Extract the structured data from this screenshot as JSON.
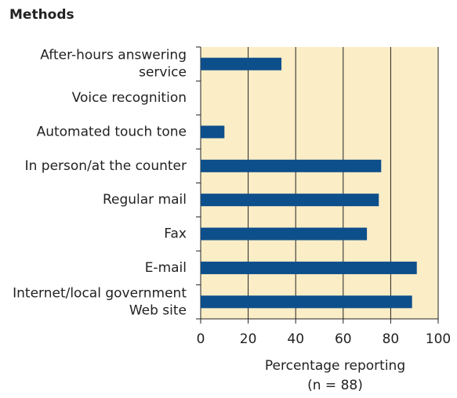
{
  "chart_data": {
    "type": "barh",
    "title": "Methods",
    "categories": [
      [
        "After-hours answering",
        "service"
      ],
      [
        "Voice recognition"
      ],
      [
        "Automated touch tone"
      ],
      [
        "In person/at the counter"
      ],
      [
        "Regular mail"
      ],
      [
        "Fax"
      ],
      [
        "E-mail"
      ],
      [
        "Internet/local government",
        "Web site"
      ]
    ],
    "values": [
      34,
      0,
      10,
      76,
      75,
      70,
      91,
      89
    ],
    "color": "#0d4f8b",
    "background": "#fbedc6",
    "xlim": [
      0,
      100
    ],
    "xticks": [
      0,
      20,
      40,
      60,
      80,
      100
    ],
    "grid": true,
    "xlabel": [
      "Percentage reporting",
      "(n = 88)"
    ]
  }
}
